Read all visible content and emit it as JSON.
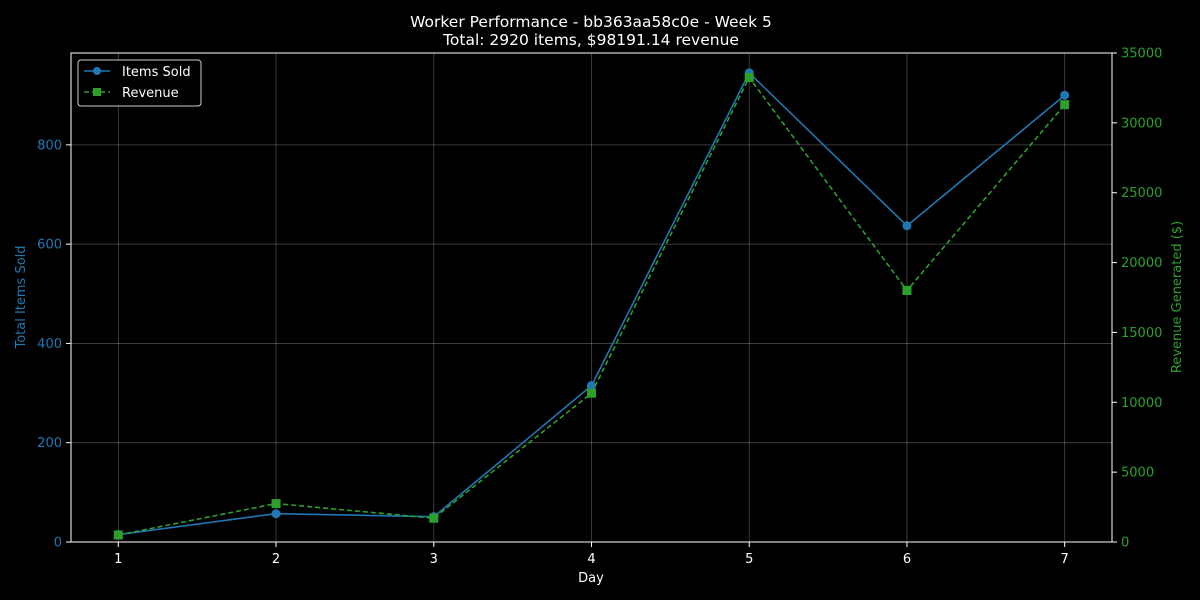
{
  "chart_data": {
    "type": "line",
    "title": "Worker Performance - bb363aa58c0e - Week 5",
    "subtitle": "Total: 2920 items, $98191.14 revenue",
    "xlabel": "Day",
    "ylabel_left": "Total Items Sold",
    "ylabel_right": "Revenue Generated ($)",
    "x": [
      1,
      2,
      3,
      4,
      5,
      6,
      7
    ],
    "xlim": [
      0.7,
      7.3
    ],
    "ylim_left": [
      0,
      985
    ],
    "ylim_right": [
      0,
      35000
    ],
    "yticks_left": [
      0,
      200,
      400,
      600,
      800
    ],
    "yticks_right": [
      0,
      5000,
      10000,
      15000,
      20000,
      25000,
      30000,
      35000
    ],
    "grid": true,
    "legend_position": "upper-left",
    "series": [
      {
        "name": "Items Sold",
        "axis": "left",
        "values": [
          15,
          57,
          51,
          315,
          945,
          637,
          900
        ],
        "color": "#1f77b4",
        "line_style": "solid",
        "marker": "circle"
      },
      {
        "name": "Revenue",
        "axis": "right",
        "values": [
          500,
          2750,
          1700,
          10650,
          33250,
          18000,
          31300
        ],
        "color": "#2ca02c",
        "line_style": "dashed",
        "marker": "square"
      }
    ]
  }
}
